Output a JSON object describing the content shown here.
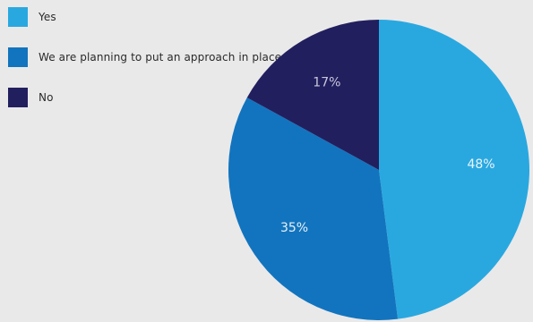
{
  "legend": {
    "items": [
      {
        "label": "Yes",
        "color": "#29a8e0"
      },
      {
        "label": "We are planning to put an approach in place",
        "color": "#1274be"
      },
      {
        "label": "No",
        "color": "#221f5f"
      }
    ]
  },
  "chart_data": {
    "type": "pie",
    "start_angle_deg": 0,
    "direction": "clockwise",
    "legend_position": "top-left",
    "slices": [
      {
        "label": "Yes",
        "value": 48,
        "display": "48%",
        "color": "#29a8e0",
        "label_color": "#e8f4fb"
      },
      {
        "label": "We are planning to put an approach in place",
        "value": 35,
        "display": "35%",
        "color": "#1274be",
        "label_color": "#e8f0f8"
      },
      {
        "label": "No",
        "value": 17,
        "display": "17%",
        "color": "#221f5f",
        "label_color": "#c9c8dc"
      }
    ]
  }
}
